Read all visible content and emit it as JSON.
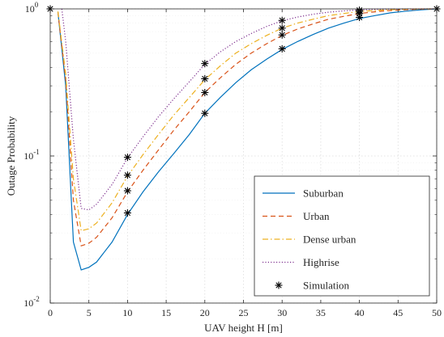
{
  "chart_data": {
    "type": "line",
    "title": "",
    "xlabel": "UAV height H [m]",
    "ylabel": "Outage Probability",
    "xlim": [
      0,
      50
    ],
    "ylim": [
      0.01,
      1
    ],
    "yscale": "log",
    "x_ticks": [
      "0",
      "5",
      "10",
      "15",
      "20",
      "25",
      "30",
      "35",
      "40",
      "45",
      "50"
    ],
    "y_ticks": [
      {
        "base": "10",
        "exp": "-2"
      },
      {
        "base": "10",
        "exp": "-1"
      },
      {
        "base": "10",
        "exp": "0"
      }
    ],
    "grid": true,
    "legend_position": "bottom-right",
    "series": [
      {
        "name": "Suburban",
        "color": "#0072BD",
        "dash": "solid",
        "x": [
          1,
          2,
          3,
          4,
          5,
          6,
          8,
          10,
          12,
          14,
          16,
          18,
          20,
          22,
          24,
          26,
          28,
          30,
          32,
          34,
          36,
          38,
          40,
          42,
          44,
          46,
          48,
          50
        ],
        "y": [
          0.95,
          0.3,
          0.026,
          0.0168,
          0.0175,
          0.019,
          0.026,
          0.04,
          0.057,
          0.078,
          0.104,
          0.14,
          0.195,
          0.25,
          0.315,
          0.385,
          0.455,
          0.53,
          0.6,
          0.67,
          0.74,
          0.8,
          0.86,
          0.9,
          0.94,
          0.965,
          0.985,
          1.0
        ]
      },
      {
        "name": "Urban",
        "color": "#D95319",
        "dash": "dashed",
        "x": [
          1,
          2,
          3,
          4,
          5,
          6,
          8,
          10,
          12,
          14,
          16,
          18,
          20,
          22,
          24,
          26,
          28,
          30,
          32,
          34,
          36,
          38,
          40,
          42,
          44,
          46,
          48,
          50
        ],
        "y": [
          0.95,
          0.33,
          0.05,
          0.0245,
          0.0255,
          0.028,
          0.038,
          0.057,
          0.08,
          0.11,
          0.15,
          0.2,
          0.27,
          0.34,
          0.42,
          0.5,
          0.58,
          0.66,
          0.73,
          0.79,
          0.85,
          0.89,
          0.93,
          0.955,
          0.975,
          0.988,
          0.996,
          1.0
        ]
      },
      {
        "name": "Dense urban",
        "color": "#EDB120",
        "dash": "dashdot",
        "x": [
          1,
          2,
          3,
          4,
          5,
          6,
          8,
          10,
          12,
          14,
          16,
          18,
          20,
          22,
          24,
          26,
          28,
          30,
          32,
          34,
          36,
          38,
          40,
          42,
          44,
          46,
          48,
          50
        ],
        "y": [
          0.96,
          0.36,
          0.07,
          0.031,
          0.032,
          0.035,
          0.048,
          0.073,
          0.102,
          0.14,
          0.19,
          0.25,
          0.33,
          0.41,
          0.5,
          0.58,
          0.66,
          0.74,
          0.8,
          0.85,
          0.9,
          0.93,
          0.96,
          0.975,
          0.988,
          0.995,
          0.999,
          1.0
        ]
      },
      {
        "name": "Highrise",
        "color": "#7E2F8E",
        "dash": "dotted",
        "x": [
          1.5,
          2,
          3,
          4,
          5,
          6,
          8,
          10,
          12,
          14,
          16,
          18,
          20,
          22,
          24,
          26,
          28,
          30,
          32,
          34,
          36,
          38,
          40,
          42,
          44,
          46,
          48,
          50
        ],
        "y": [
          1.0,
          0.6,
          0.13,
          0.044,
          0.043,
          0.047,
          0.064,
          0.097,
          0.135,
          0.185,
          0.245,
          0.32,
          0.42,
          0.51,
          0.6,
          0.68,
          0.76,
          0.83,
          0.88,
          0.92,
          0.95,
          0.97,
          0.985,
          0.993,
          0.997,
          0.999,
          1.0,
          1.0
        ]
      }
    ],
    "simulation": {
      "name": "Simulation",
      "marker": "asterisk",
      "color": "#000000",
      "points": [
        {
          "x": 0,
          "y": 1.0
        },
        {
          "x": 10,
          "y": 0.041
        },
        {
          "x": 10,
          "y": 0.058
        },
        {
          "x": 10,
          "y": 0.074
        },
        {
          "x": 10,
          "y": 0.098
        },
        {
          "x": 20,
          "y": 0.195
        },
        {
          "x": 20,
          "y": 0.27
        },
        {
          "x": 20,
          "y": 0.335
        },
        {
          "x": 20,
          "y": 0.425
        },
        {
          "x": 30,
          "y": 0.535
        },
        {
          "x": 30,
          "y": 0.665
        },
        {
          "x": 30,
          "y": 0.74
        },
        {
          "x": 30,
          "y": 0.835
        },
        {
          "x": 40,
          "y": 0.875
        },
        {
          "x": 40,
          "y": 0.93
        },
        {
          "x": 40,
          "y": 0.96
        },
        {
          "x": 40,
          "y": 0.98
        },
        {
          "x": 50,
          "y": 1.0
        }
      ]
    }
  }
}
